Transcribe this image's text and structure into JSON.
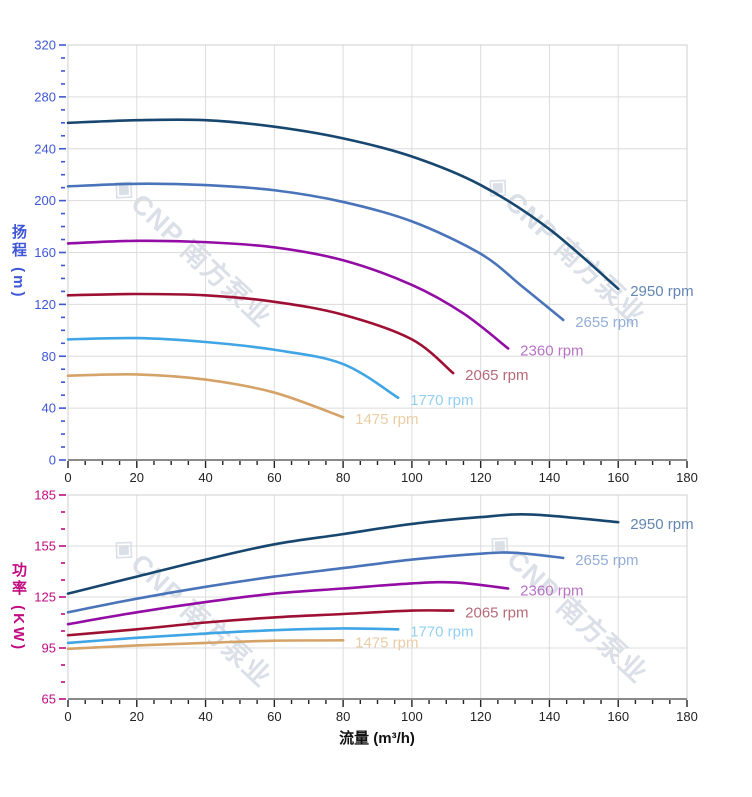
{
  "watermark": {
    "icon": "◈",
    "text": "CNP 南方泵业"
  },
  "chart_data": [
    {
      "type": "line",
      "title": "",
      "xlabel": "流量 (m³/h)",
      "ylabel": "扬程 (m)",
      "xlim": [
        0,
        180
      ],
      "ylim": [
        0,
        320
      ],
      "x_ticks": [
        0,
        20,
        40,
        60,
        80,
        100,
        120,
        140,
        160,
        180
      ],
      "y_ticks": [
        0,
        40,
        80,
        120,
        160,
        200,
        240,
        280,
        320
      ],
      "x_minor_step": 5,
      "y_minor_step": 10,
      "grid": true,
      "legend_position": "end-of-line",
      "axis_color": "#3f57d7",
      "x_tick_label_color": "#222222",
      "grid_color": "#dcdcdc",
      "series": [
        {
          "name": "2950 rpm",
          "color": "#17466f",
          "label_color": "#6286b2",
          "x": [
            0,
            20,
            40,
            60,
            80,
            100,
            120,
            140,
            160
          ],
          "y": [
            260,
            262,
            262,
            257,
            248,
            234,
            212,
            178,
            132
          ]
        },
        {
          "name": "2655 rpm",
          "color": "#4a74ba",
          "label_color": "#94add9",
          "x": [
            0,
            20,
            40,
            60,
            80,
            100,
            120,
            132,
            144
          ],
          "y": [
            211,
            213,
            212,
            208,
            199,
            184,
            159,
            134,
            108
          ]
        },
        {
          "name": "2360 rpm",
          "color": "#930da5",
          "label_color": "#b873c6",
          "x": [
            0,
            20,
            40,
            60,
            80,
            100,
            115,
            128
          ],
          "y": [
            167,
            169,
            168,
            164,
            154,
            135,
            113,
            86
          ]
        },
        {
          "name": "2065 rpm",
          "color": "#9e1033",
          "label_color": "#b66a78",
          "x": [
            0,
            20,
            40,
            60,
            80,
            100,
            112
          ],
          "y": [
            127,
            128,
            127,
            122,
            112,
            93,
            67
          ]
        },
        {
          "name": "1770 rpm",
          "color": "#3fa5e5",
          "label_color": "#93cff2",
          "x": [
            0,
            20,
            40,
            60,
            80,
            96
          ],
          "y": [
            93,
            94,
            91,
            85,
            74,
            48
          ]
        },
        {
          "name": "1475 rpm",
          "color": "#d5a368",
          "label_color": "#e9cda4",
          "x": [
            0,
            20,
            40,
            60,
            80
          ],
          "y": [
            65,
            66,
            62,
            52,
            33
          ]
        }
      ]
    },
    {
      "type": "line",
      "title": "",
      "xlabel": "流量 (m³/h)",
      "ylabel": "功率 (KW)",
      "xlim": [
        0,
        180
      ],
      "ylim": [
        65,
        185
      ],
      "x_ticks": [
        0,
        20,
        40,
        60,
        80,
        100,
        120,
        140,
        160,
        180
      ],
      "y_ticks": [
        65,
        95,
        125,
        155,
        185
      ],
      "x_minor_step": 5,
      "y_minor_step": 10,
      "grid": true,
      "legend_position": "end-of-line",
      "axis_color": "#c00b81",
      "x_tick_label_color": "#222222",
      "grid_color": "#dcdcdc",
      "series": [
        {
          "name": "2950 rpm",
          "color": "#17466f",
          "label_color": "#6286b2",
          "x": [
            0,
            20,
            40,
            60,
            80,
            100,
            120,
            135,
            160
          ],
          "y": [
            127,
            137,
            147,
            156,
            162,
            168,
            172,
            173.5,
            169
          ]
        },
        {
          "name": "2655 rpm",
          "color": "#4a74ba",
          "label_color": "#94add9",
          "x": [
            0,
            20,
            40,
            60,
            80,
            100,
            120,
            130,
            144
          ],
          "y": [
            116,
            124,
            131,
            137,
            142,
            147,
            150.5,
            151,
            148
          ]
        },
        {
          "name": "2360 rpm",
          "color": "#930da5",
          "label_color": "#b873c6",
          "x": [
            0,
            20,
            40,
            60,
            80,
            100,
            113,
            128
          ],
          "y": [
            109,
            116,
            122,
            127,
            130,
            133,
            133.5,
            130
          ]
        },
        {
          "name": "2065 rpm",
          "color": "#9e1033",
          "label_color": "#b66a78",
          "x": [
            0,
            20,
            40,
            60,
            80,
            100,
            112
          ],
          "y": [
            102.5,
            106,
            110,
            113,
            115,
            117,
            117
          ]
        },
        {
          "name": "1770 rpm",
          "color": "#3fa5e5",
          "label_color": "#93cff2",
          "x": [
            0,
            20,
            40,
            60,
            80,
            96
          ],
          "y": [
            98,
            101,
            103.5,
            105.5,
            106.5,
            106
          ]
        },
        {
          "name": "1475 rpm",
          "color": "#d5a368",
          "label_color": "#e9cda4",
          "x": [
            0,
            20,
            40,
            60,
            80
          ],
          "y": [
            94.5,
            96.5,
            98,
            99.3,
            99.5
          ]
        }
      ]
    }
  ]
}
